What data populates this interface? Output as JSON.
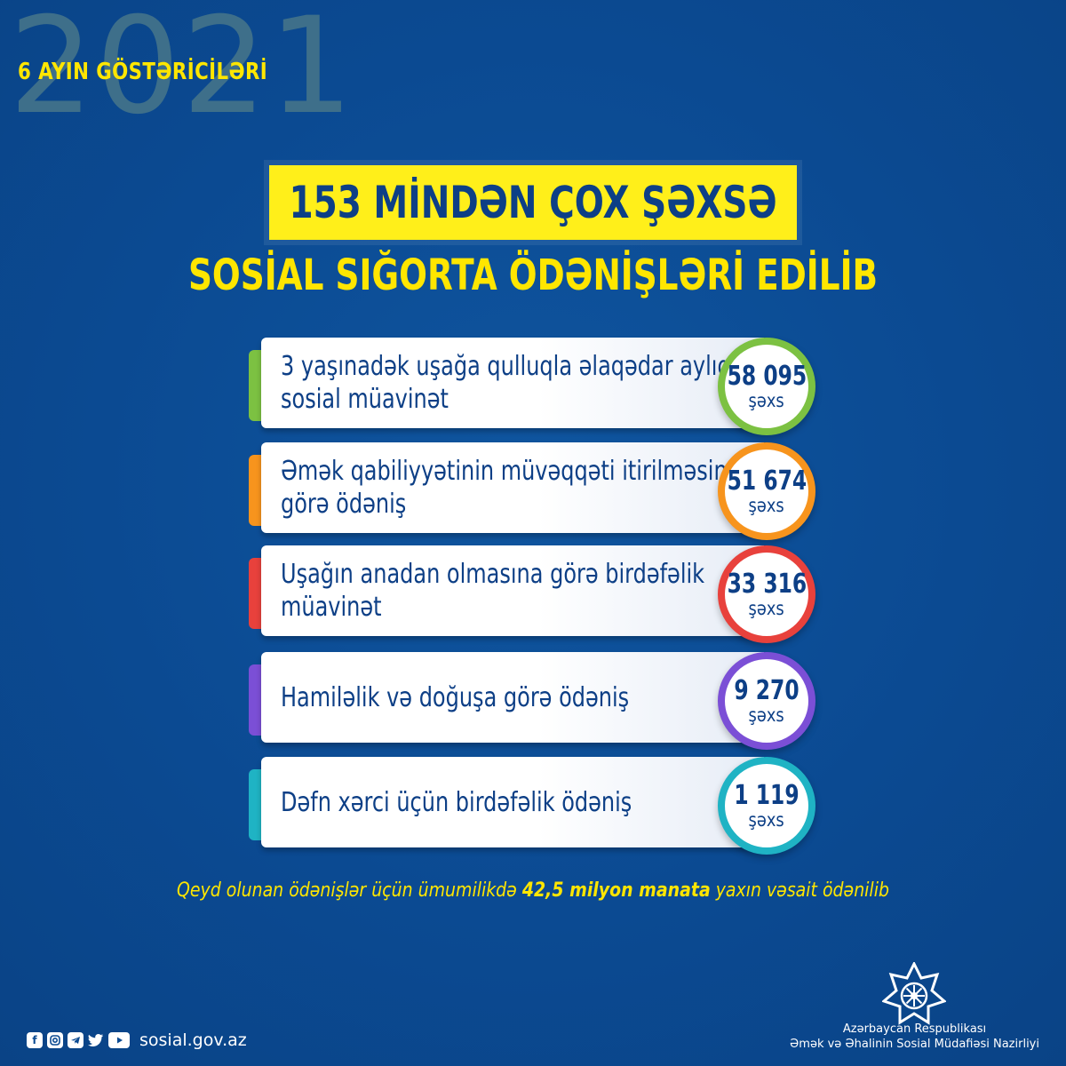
{
  "header": {
    "year": "2021",
    "subtitle": "6 AYIN GÖSTƏRİCİLƏRİ"
  },
  "headline": "153 MİNDƏN ÇOX ŞƏXSƏ",
  "subheadline": "SOSİAL SIĞORTA ÖDƏNİŞLƏRİ EDİLİB",
  "items": [
    {
      "line1": "3 yaşınadək uşağa qulluqla əlaqədar aylıq",
      "line2": "sosial müavinət",
      "count": "58 095",
      "unit": "şəxs",
      "color": "#7cc142"
    },
    {
      "line1": "Əmək qabiliyyətinin müvəqqəti itirilməsinə",
      "line2": "görə ödəniş",
      "count": "51 674",
      "unit": "şəxs",
      "color": "#f7941d"
    },
    {
      "line1": "Uşağın anadan olmasına görə birdəfəlik",
      "line2": "müavinət",
      "count": "33 316",
      "unit": "şəxs",
      "color": "#e8413c"
    },
    {
      "line1": "Hamiləlik və doğuşa görə ödəniş",
      "line2": "",
      "count": "9 270",
      "unit": "şəxs",
      "color": "#7b4fd6"
    },
    {
      "line1": "Dəfn xərci üçün birdəfəlik ödəniş",
      "line2": "",
      "count": "1 119",
      "unit": "şəxs",
      "color": "#1fb3c4"
    }
  ],
  "footnote": {
    "before": "Qeyd olunan ödənişlər üçün ümumilikdə ",
    "bold": "42,5 milyon manata",
    "after": " yaxın vəsait ödənilib"
  },
  "social": {
    "icons": [
      "facebook-icon",
      "instagram-icon",
      "telegram-icon",
      "twitter-icon",
      "youtube-icon"
    ],
    "website": "sosial.gov.az"
  },
  "org": {
    "line1": "Azərbaycan Respublikası",
    "line2": "Əmək və Əhalinin Sosial Müdafiəsi Nazirliyi"
  }
}
